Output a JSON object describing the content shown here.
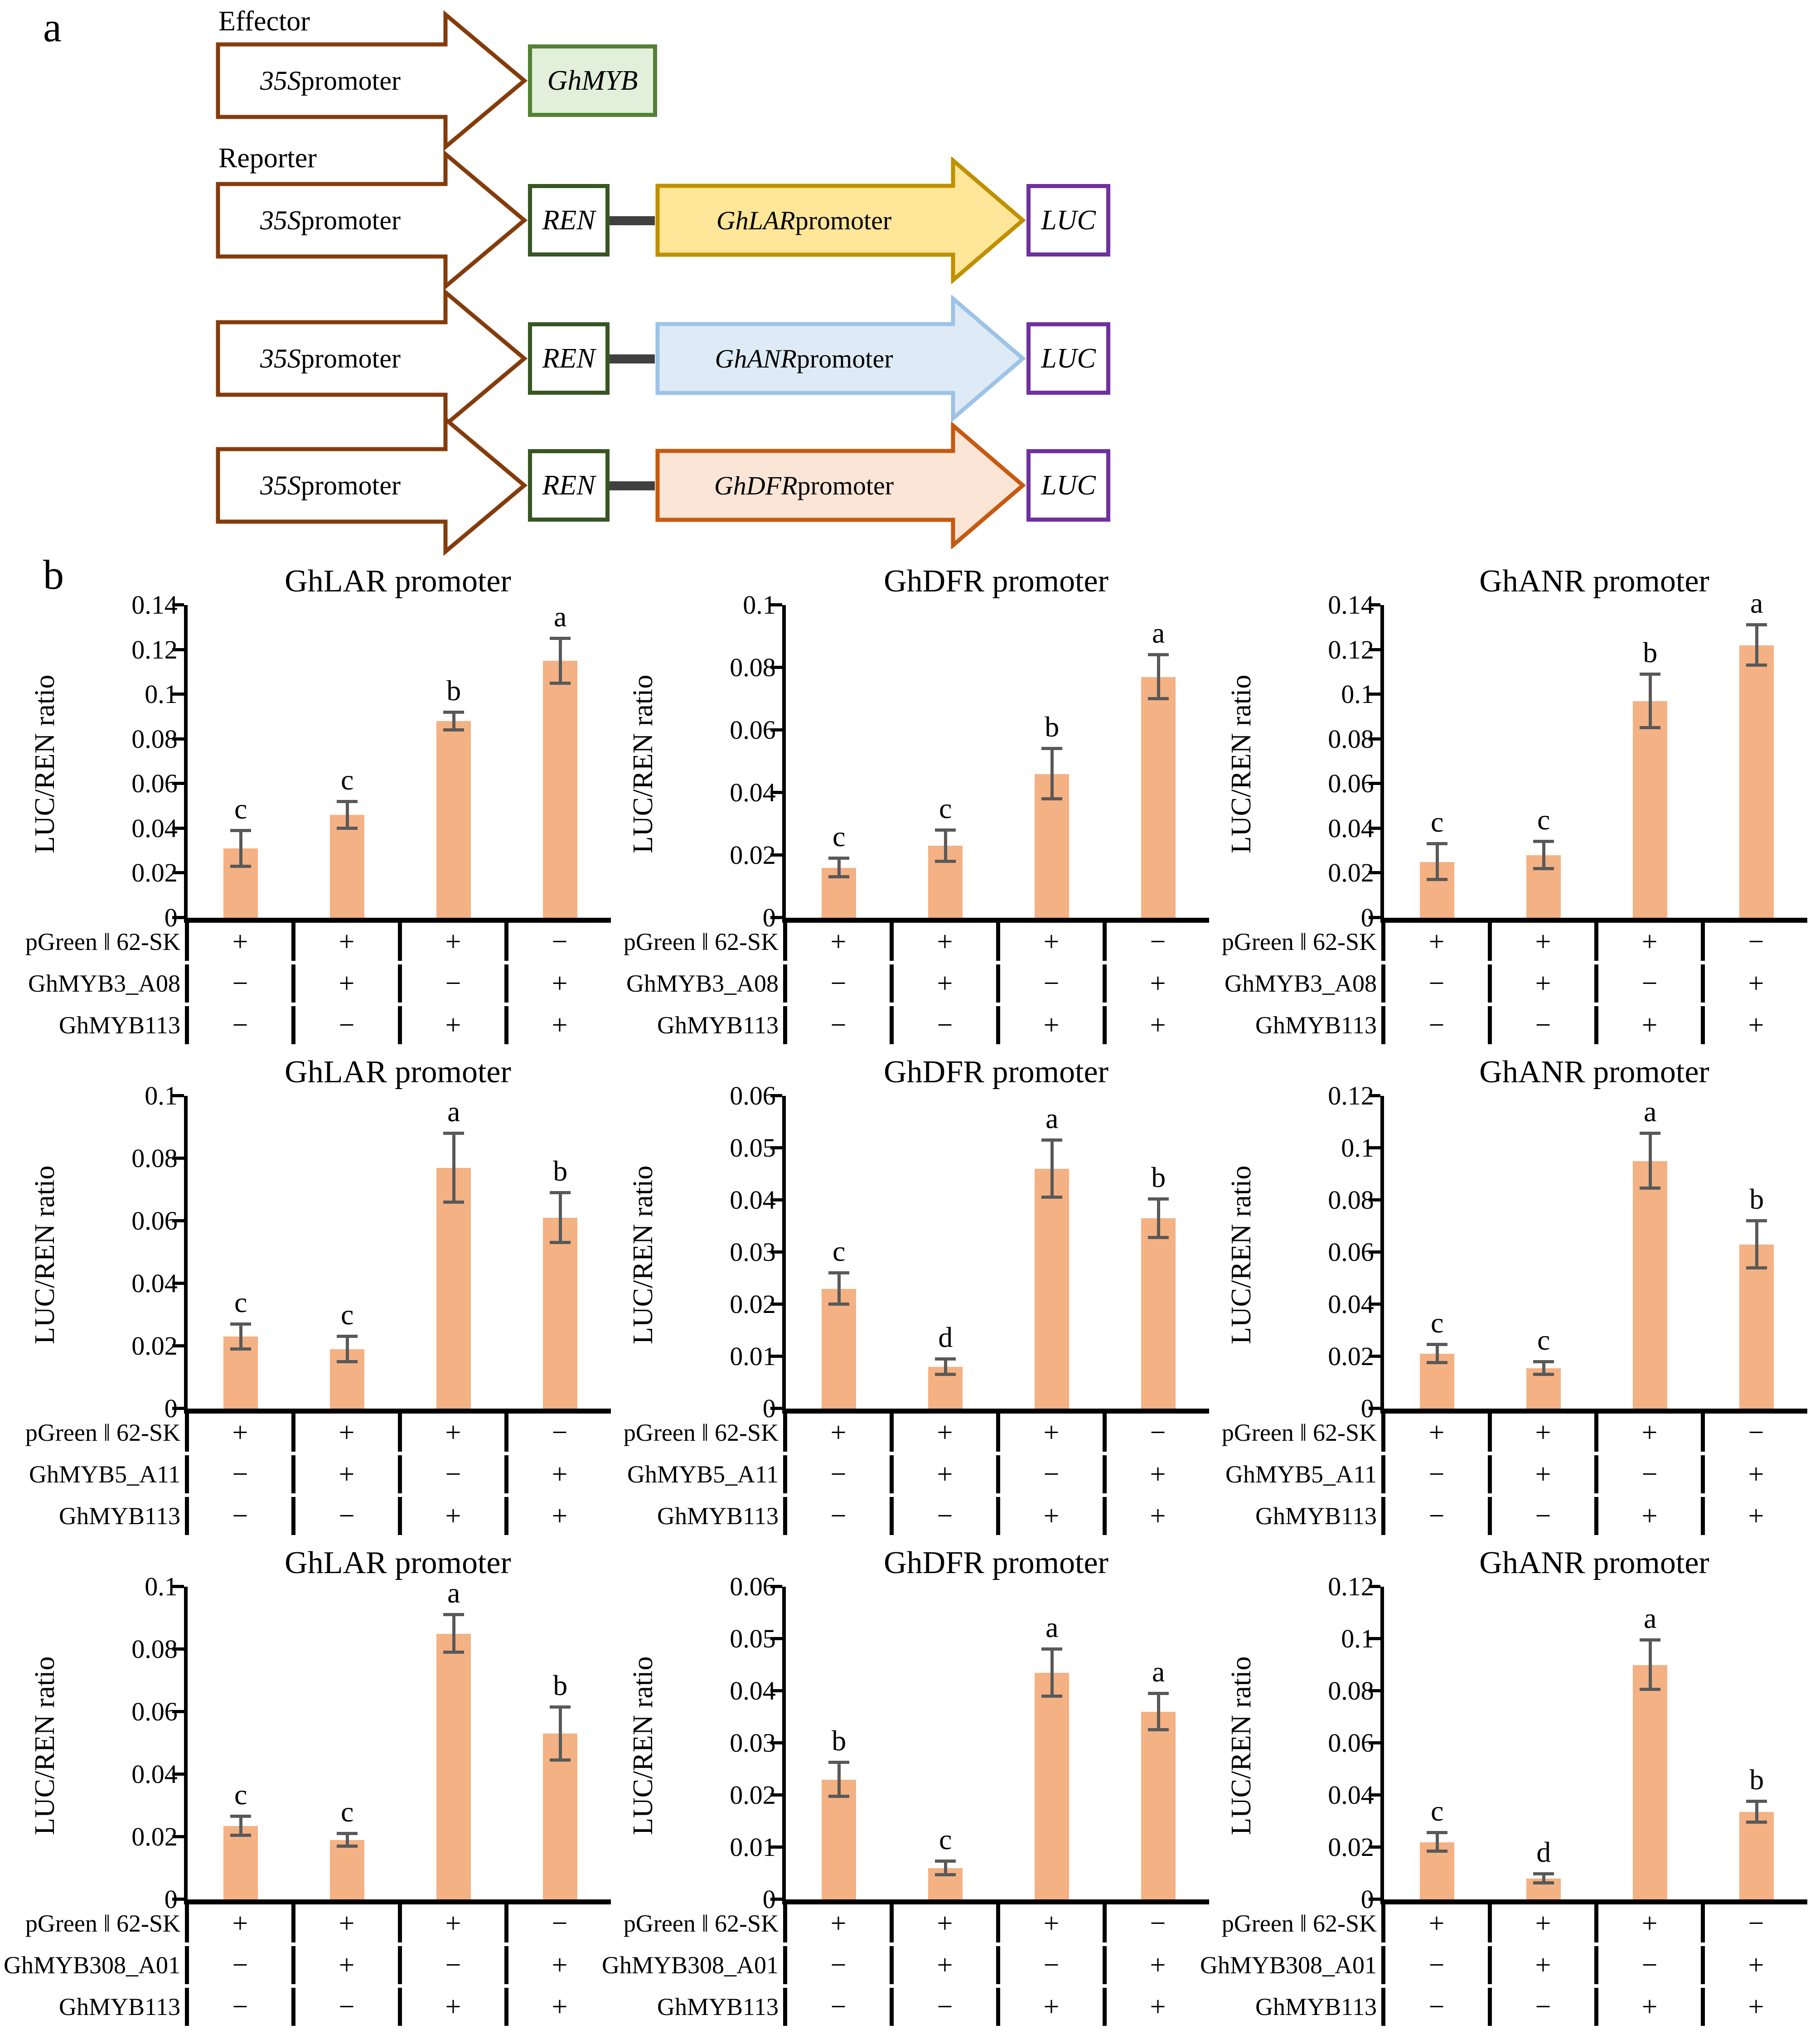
{
  "colors": {
    "bar": "#F4B183",
    "error_bar": "#595959",
    "axis": "#000000",
    "arrow35s_stroke": "#843C0C",
    "ghmyb_fill": "#E2EFDA",
    "ghmyb_stroke": "#538135",
    "ren_stroke": "#375623",
    "luc_stroke": "#7030A0",
    "connector": "#404040"
  },
  "panel_a": {
    "label": "a",
    "effector_heading": "Effector",
    "reporter_heading": "Reporter",
    "promoter_label": {
      "gene": "35S",
      "rest": " promoter"
    },
    "effector": {
      "gene_box": "GhMYB"
    },
    "ren_label": "REN",
    "luc_label": "LUC",
    "reporters": [
      {
        "gene": "GhLAR",
        "rest": " promoter",
        "fill": "#FFE699",
        "stroke": "#BF9000"
      },
      {
        "gene": "GhANR",
        "rest": " promoter",
        "fill": "#DEEBF7",
        "stroke": "#9DC3E6"
      },
      {
        "gene": "GhDFR",
        "rest": " promoter",
        "fill": "#FBE5D6",
        "stroke": "#C55A11"
      }
    ]
  },
  "panel_b": {
    "label": "b",
    "ylabel": "LUC/REN ratio"
  },
  "chart_data": [
    {
      "type": "bar",
      "title": "GhLAR promoter",
      "ylabel": "LUC/REN ratio",
      "ylim": [
        0,
        0.14
      ],
      "ytick_step": 0.02,
      "grid": false,
      "legend": "none",
      "values": [
        0.031,
        0.046,
        0.088,
        0.115
      ],
      "errors": [
        0.008,
        0.006,
        0.004,
        0.01
      ],
      "sig_letters": [
        "c",
        "c",
        "b",
        "a"
      ],
      "conditions": [
        {
          "label": "pGreen ‖ 62-SK",
          "signs": [
            "+",
            "+",
            "+",
            "−"
          ]
        },
        {
          "label": "GhMYB3_A08",
          "signs": [
            "−",
            "+",
            "−",
            "+"
          ]
        },
        {
          "label": "GhMYB113",
          "signs": [
            "−",
            "−",
            "+",
            "+"
          ]
        }
      ]
    },
    {
      "type": "bar",
      "title": "GhDFR promoter",
      "ylabel": "LUC/REN ratio",
      "ylim": [
        0,
        0.1
      ],
      "ytick_step": 0.02,
      "grid": false,
      "legend": "none",
      "values": [
        0.016,
        0.023,
        0.046,
        0.077
      ],
      "errors": [
        0.003,
        0.005,
        0.008,
        0.007
      ],
      "sig_letters": [
        "c",
        "c",
        "b",
        "a"
      ],
      "conditions": [
        {
          "label": "pGreen ‖ 62-SK",
          "signs": [
            "+",
            "+",
            "+",
            "−"
          ]
        },
        {
          "label": "GhMYB3_A08",
          "signs": [
            "−",
            "+",
            "−",
            "+"
          ]
        },
        {
          "label": "GhMYB113",
          "signs": [
            "−",
            "−",
            "+",
            "+"
          ]
        }
      ]
    },
    {
      "type": "bar",
      "title": "GhANR promoter",
      "ylabel": "LUC/REN ratio",
      "ylim": [
        0,
        0.14
      ],
      "ytick_step": 0.02,
      "grid": false,
      "legend": "none",
      "values": [
        0.025,
        0.028,
        0.097,
        0.122
      ],
      "errors": [
        0.008,
        0.006,
        0.012,
        0.009
      ],
      "sig_letters": [
        "c",
        "c",
        "b",
        "a"
      ],
      "conditions": [
        {
          "label": "pGreen ‖ 62-SK",
          "signs": [
            "+",
            "+",
            "+",
            "−"
          ]
        },
        {
          "label": "GhMYB3_A08",
          "signs": [
            "−",
            "+",
            "−",
            "+"
          ]
        },
        {
          "label": "GhMYB113",
          "signs": [
            "−",
            "−",
            "+",
            "+"
          ]
        }
      ]
    },
    {
      "type": "bar",
      "title": "GhLAR promoter",
      "ylabel": "LUC/REN ratio",
      "ylim": [
        0,
        0.1
      ],
      "ytick_step": 0.02,
      "grid": false,
      "legend": "none",
      "values": [
        0.023,
        0.019,
        0.077,
        0.061
      ],
      "errors": [
        0.004,
        0.004,
        0.011,
        0.008
      ],
      "sig_letters": [
        "c",
        "c",
        "a",
        "b"
      ],
      "conditions": [
        {
          "label": "pGreen ‖ 62-SK",
          "signs": [
            "+",
            "+",
            "+",
            "−"
          ]
        },
        {
          "label": "GhMYB5_A11",
          "signs": [
            "−",
            "+",
            "−",
            "+"
          ]
        },
        {
          "label": "GhMYB113",
          "signs": [
            "−",
            "−",
            "+",
            "+"
          ]
        }
      ]
    },
    {
      "type": "bar",
      "title": "GhDFR promoter",
      "ylabel": "LUC/REN ratio",
      "ylim": [
        0,
        0.06
      ],
      "ytick_step": 0.01,
      "grid": false,
      "legend": "none",
      "values": [
        0.023,
        0.008,
        0.046,
        0.0365
      ],
      "errors": [
        0.003,
        0.0015,
        0.0055,
        0.0037
      ],
      "sig_letters": [
        "c",
        "d",
        "a",
        "b"
      ],
      "conditions": [
        {
          "label": "pGreen ‖ 62-SK",
          "signs": [
            "+",
            "+",
            "+",
            "−"
          ]
        },
        {
          "label": "GhMYB5_A11",
          "signs": [
            "−",
            "+",
            "−",
            "+"
          ]
        },
        {
          "label": "GhMYB113",
          "signs": [
            "−",
            "−",
            "+",
            "+"
          ]
        }
      ]
    },
    {
      "type": "bar",
      "title": "GhANR promoter",
      "ylabel": "LUC/REN ratio",
      "ylim": [
        0,
        0.12
      ],
      "ytick_step": 0.02,
      "grid": false,
      "legend": "none",
      "values": [
        0.021,
        0.0155,
        0.095,
        0.063
      ],
      "errors": [
        0.0035,
        0.0025,
        0.0105,
        0.009
      ],
      "sig_letters": [
        "c",
        "c",
        "a",
        "b"
      ],
      "conditions": [
        {
          "label": "pGreen ‖ 62-SK",
          "signs": [
            "+",
            "+",
            "+",
            "−"
          ]
        },
        {
          "label": "GhMYB5_A11",
          "signs": [
            "−",
            "+",
            "−",
            "+"
          ]
        },
        {
          "label": "GhMYB113",
          "signs": [
            "−",
            "−",
            "+",
            "+"
          ]
        }
      ]
    },
    {
      "type": "bar",
      "title": "GhLAR promoter",
      "ylabel": "LUC/REN ratio",
      "ylim": [
        0,
        0.1
      ],
      "ytick_step": 0.02,
      "grid": false,
      "legend": "none",
      "values": [
        0.0235,
        0.019,
        0.085,
        0.053
      ],
      "errors": [
        0.003,
        0.002,
        0.006,
        0.0085
      ],
      "sig_letters": [
        "c",
        "c",
        "a",
        "b"
      ],
      "conditions": [
        {
          "label": "pGreen ‖ 62-SK",
          "signs": [
            "+",
            "+",
            "+",
            "−"
          ]
        },
        {
          "label": "GhMYB308_A01",
          "signs": [
            "−",
            "+",
            "−",
            "+"
          ]
        },
        {
          "label": "GhMYB113",
          "signs": [
            "−",
            "−",
            "+",
            "+"
          ]
        }
      ]
    },
    {
      "type": "bar",
      "title": "GhDFR promoter",
      "ylabel": "LUC/REN ratio",
      "ylim": [
        0,
        0.06
      ],
      "ytick_step": 0.01,
      "grid": false,
      "legend": "none",
      "values": [
        0.023,
        0.006,
        0.0435,
        0.036
      ],
      "errors": [
        0.0033,
        0.0013,
        0.0045,
        0.0035
      ],
      "sig_letters": [
        "b",
        "c",
        "a",
        "a"
      ],
      "conditions": [
        {
          "label": "pGreen ‖ 62-SK",
          "signs": [
            "+",
            "+",
            "+",
            "−"
          ]
        },
        {
          "label": "GhMYB308_A01",
          "signs": [
            "−",
            "+",
            "−",
            "+"
          ]
        },
        {
          "label": "GhMYB113",
          "signs": [
            "−",
            "−",
            "+",
            "+"
          ]
        }
      ]
    },
    {
      "type": "bar",
      "title": "GhANR promoter",
      "ylabel": "LUC/REN ratio",
      "ylim": [
        0,
        0.12
      ],
      "ytick_step": 0.02,
      "grid": false,
      "legend": "none",
      "values": [
        0.022,
        0.008,
        0.09,
        0.0335
      ],
      "errors": [
        0.0035,
        0.0018,
        0.0095,
        0.004
      ],
      "sig_letters": [
        "c",
        "d",
        "a",
        "b"
      ],
      "conditions": [
        {
          "label": "pGreen ‖ 62-SK",
          "signs": [
            "+",
            "+",
            "+",
            "−"
          ]
        },
        {
          "label": "GhMYB308_A01",
          "signs": [
            "−",
            "+",
            "−",
            "+"
          ]
        },
        {
          "label": "GhMYB113",
          "signs": [
            "−",
            "−",
            "+",
            "+"
          ]
        }
      ]
    }
  ]
}
